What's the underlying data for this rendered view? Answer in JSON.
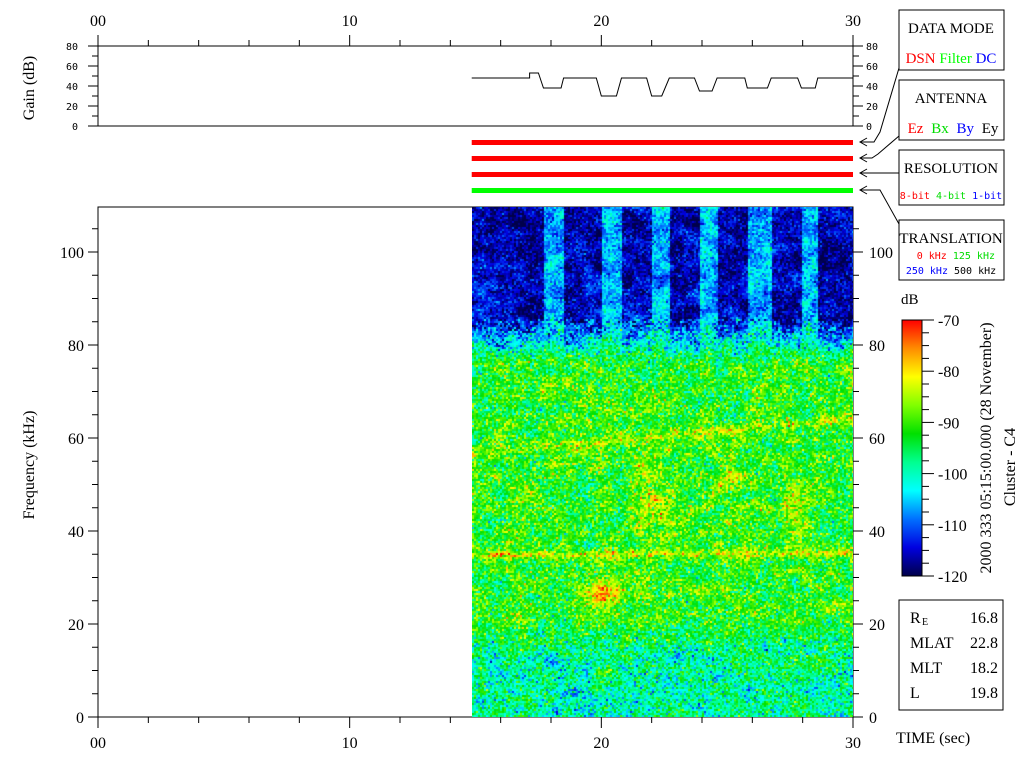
{
  "chart_data": {
    "type": "heatmap",
    "title": "",
    "time_axis": {
      "label": "TIME (sec)",
      "range": [
        0,
        30
      ],
      "tick_labels": [
        "00",
        "10",
        "20",
        "30"
      ],
      "tick_values": [
        0,
        10,
        20,
        30
      ],
      "minor_step": 2
    },
    "gain_panel": {
      "ylabel": "Gain (dB)",
      "ylim": [
        0,
        80
      ],
      "tick_labels": [
        "80",
        "60",
        "40",
        "20",
        "0"
      ],
      "tick_values": [
        80,
        60,
        40,
        20,
        0
      ],
      "series": {
        "x": [
          14.85,
          17.15,
          17.15,
          17.5,
          17.7,
          18.4,
          18.5,
          19.8,
          20.0,
          20.6,
          20.8,
          21.8,
          22.0,
          22.4,
          22.7,
          23.7,
          23.9,
          24.4,
          24.6,
          25.7,
          25.8,
          26.6,
          26.75,
          27.8,
          27.95,
          28.5,
          28.6,
          30.0
        ],
        "y": [
          48,
          48,
          53,
          53,
          38,
          38,
          48,
          48,
          30,
          30,
          48,
          48,
          30,
          30,
          48,
          48,
          35,
          35,
          48,
          48,
          38,
          38,
          48,
          48,
          38,
          38,
          48,
          48
        ]
      }
    },
    "status_bars": [
      {
        "indicator": "DATA MODE",
        "value": "DSN",
        "color": "#ff0000",
        "x_range": [
          14.85,
          30
        ]
      },
      {
        "indicator": "ANTENNA",
        "value": "Ez",
        "color": "#ff0000",
        "x_range": [
          14.85,
          30
        ]
      },
      {
        "indicator": "RESOLUTION",
        "value": "8-bit",
        "color": "#ff0000",
        "x_range": [
          14.85,
          30
        ]
      },
      {
        "indicator": "TRANSLATION",
        "value": "125 kHz",
        "color": "#00ff00",
        "x_range": [
          14.85,
          30
        ]
      }
    ],
    "spectrogram": {
      "ylabel": "Frequency (kHz)",
      "ylim": [
        0,
        110
      ],
      "tick_labels": [
        "100",
        "80",
        "60",
        "40",
        "20",
        "0"
      ],
      "tick_values": [
        100,
        80,
        60,
        40,
        20,
        0
      ],
      "minor_step": 5,
      "data_x_range": [
        14.85,
        30
      ],
      "features": {
        "background_upper_dB": -116,
        "background_upper_low_gain_dB": -106,
        "background_middle_dB": -92,
        "background_lower_dB": -99,
        "horizontal_line_kHz": 35
      }
    },
    "colorbar": {
      "label": "dB",
      "range": [
        -120,
        -70
      ],
      "tick_labels": [
        "-70",
        "-80",
        "-90",
        "-100",
        "-110",
        "-120"
      ],
      "tick_values": [
        -70,
        -80,
        -90,
        -100,
        -110,
        -120
      ],
      "minor_step": 2.5,
      "colormap": [
        "#00004a",
        "#0000e0",
        "#0070ff",
        "#00ffff",
        "#00ff90",
        "#00e000",
        "#80ff00",
        "#ffff00",
        "#ff8c00",
        "#ff0000"
      ]
    }
  },
  "legend_boxes": {
    "data_mode": {
      "title": "DATA MODE",
      "items": [
        {
          "label": "DSN",
          "color": "#ff0000"
        },
        {
          "label": "Filter",
          "color": "#00ff00"
        },
        {
          "label": "DC",
          "color": "#0000ff"
        }
      ]
    },
    "antenna": {
      "title": "ANTENNA",
      "items": [
        {
          "label": "Ez",
          "color": "#ff0000"
        },
        {
          "label": "Bx",
          "color": "#00dd00"
        },
        {
          "label": "By",
          "color": "#0000ff"
        },
        {
          "label": "Ey",
          "color": "#000000"
        }
      ]
    },
    "resolution": {
      "title": "RESOLUTION",
      "items": [
        {
          "label": "8-bit",
          "color": "#ff0000"
        },
        {
          "label": "4-bit",
          "color": "#00dd00"
        },
        {
          "label": "1-bit",
          "color": "#0000ff"
        }
      ]
    },
    "translation": {
      "title": "TRANSLATION",
      "items": [
        {
          "label": "0 kHz",
          "color": "#ff0000"
        },
        {
          "label": "125 kHz",
          "color": "#00dd00"
        },
        {
          "label": "250 kHz",
          "color": "#0000ff"
        },
        {
          "label": "500 kHz",
          "color": "#000000"
        }
      ]
    }
  },
  "timestamp": "2000 333 05:15:00.000 (28 November)",
  "spacecraft": "Cluster - C4",
  "ephemeris": [
    {
      "label": "R",
      "sub": "E",
      "value": "16.8"
    },
    {
      "label": "MLAT",
      "sub": "",
      "value": "22.8"
    },
    {
      "label": "MLT",
      "sub": "",
      "value": "18.2"
    },
    {
      "label": "L",
      "sub": "",
      "value": "19.8"
    }
  ]
}
